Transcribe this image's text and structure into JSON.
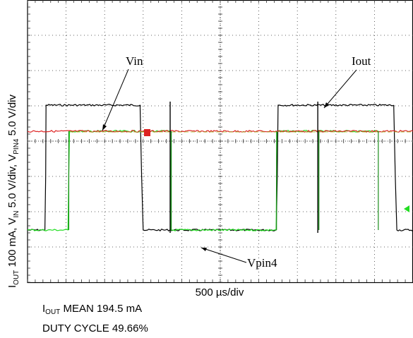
{
  "chart_data": {
    "type": "line",
    "x_label": "500 µs/div",
    "y_label_parts": {
      "iout": "I",
      "iout_sub": "OUT",
      "iout_scale": " 100 mA, V",
      "vin_sub": "IN",
      "vin_scale": " 5.0 V/div, V",
      "vpin4_sub": "PIN4",
      "vpin4_scale": " 5.0 V/div"
    },
    "grid": true,
    "divisions": {
      "x": 10,
      "y": 8
    },
    "x_unit": "div",
    "y_unit": "div",
    "annotations": {
      "vin": "Vin",
      "iout": "Iout",
      "vpin4": "Vpin4"
    },
    "series": [
      {
        "name": "Iout",
        "color": "#000000",
        "x": [
          0,
          0.45,
          0.47,
          0.48,
          2.92,
          2.96,
          3.0,
          6.45,
          6.48,
          6.5,
          9.5
        ],
        "y": [
          1.48,
          1.48,
          3.0,
          5.02,
          5.02,
          3.0,
          1.48,
          1.48,
          3.0,
          5.02,
          5.02
        ]
      },
      {
        "name": "Iout_continued",
        "color": "#000000",
        "x": [
          9.5,
          9.54,
          9.58,
          10.0
        ],
        "y": [
          5.02,
          3.0,
          1.48,
          1.48
        ]
      },
      {
        "name": "Vpin4",
        "color": "#22dd22",
        "x": [
          0,
          1.05,
          1.07,
          1.09,
          3.7,
          3.71,
          3.72,
          6.45,
          6.46,
          6.47,
          9.1
        ],
        "y": [
          1.48,
          1.48,
          3.0,
          4.28,
          4.28,
          3.0,
          1.48,
          1.48,
          3.0,
          4.28,
          4.28
        ]
      },
      {
        "name": "Vin",
        "color": "#dd2222",
        "x": [
          0,
          10
        ],
        "y": [
          4.28,
          4.28
        ]
      }
    ],
    "spikes": {
      "x": [
        3.7,
        7.53
      ],
      "bottom": 1.48,
      "top": 4.28
    }
  },
  "stats": {
    "mean_prefix": "I",
    "mean_sub": "OUT",
    "mean_text": " MEAN 194.5 mA",
    "duty": "DUTY CYCLE 49.66%"
  }
}
